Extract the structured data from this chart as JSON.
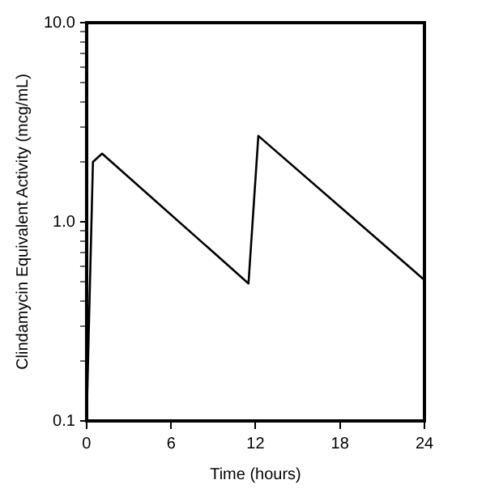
{
  "chart_data": {
    "type": "line",
    "xlabel": "Time (hours)",
    "ylabel": "Clindamycin Equivalent Activity (mcg/mL)",
    "x": [
      0,
      0.45,
      1.1,
      11.5,
      12.2,
      24
    ],
    "series": [
      {
        "color": "#000000",
        "values": [
          0.1,
          2.0,
          2.2,
          0.49,
          2.7,
          0.51
        ]
      }
    ],
    "xlim": [
      0,
      24
    ],
    "xticks": [
      0,
      6,
      12,
      18,
      24
    ],
    "ylim": [
      0.1,
      10
    ],
    "log": true,
    "yticks": [
      0.1,
      {
        "value": 0.2,
        "label": null
      },
      {
        "value": 0.3,
        "label": null
      },
      {
        "value": 0.4,
        "label": null
      },
      {
        "value": 0.5,
        "label": null
      },
      {
        "value": 0.6,
        "label": null
      },
      {
        "value": 0.7,
        "label": null
      },
      {
        "value": 0.8,
        "label": null
      },
      {
        "value": 0.9,
        "label": null
      },
      {
        "value": 1,
        "label": "1.0"
      },
      {
        "value": 2,
        "label": null
      },
      {
        "value": 3,
        "label": null
      },
      {
        "value": 4,
        "label": null
      },
      {
        "value": 5,
        "label": null
      },
      {
        "value": 6,
        "label": null
      },
      {
        "value": 7,
        "label": null
      },
      {
        "value": 8,
        "label": null
      },
      {
        "value": 9,
        "label": null
      },
      {
        "value": 10,
        "label": "10.0"
      }
    ],
    "grid": false,
    "legend": false,
    "marker": "none",
    "line_style": "solid"
  }
}
